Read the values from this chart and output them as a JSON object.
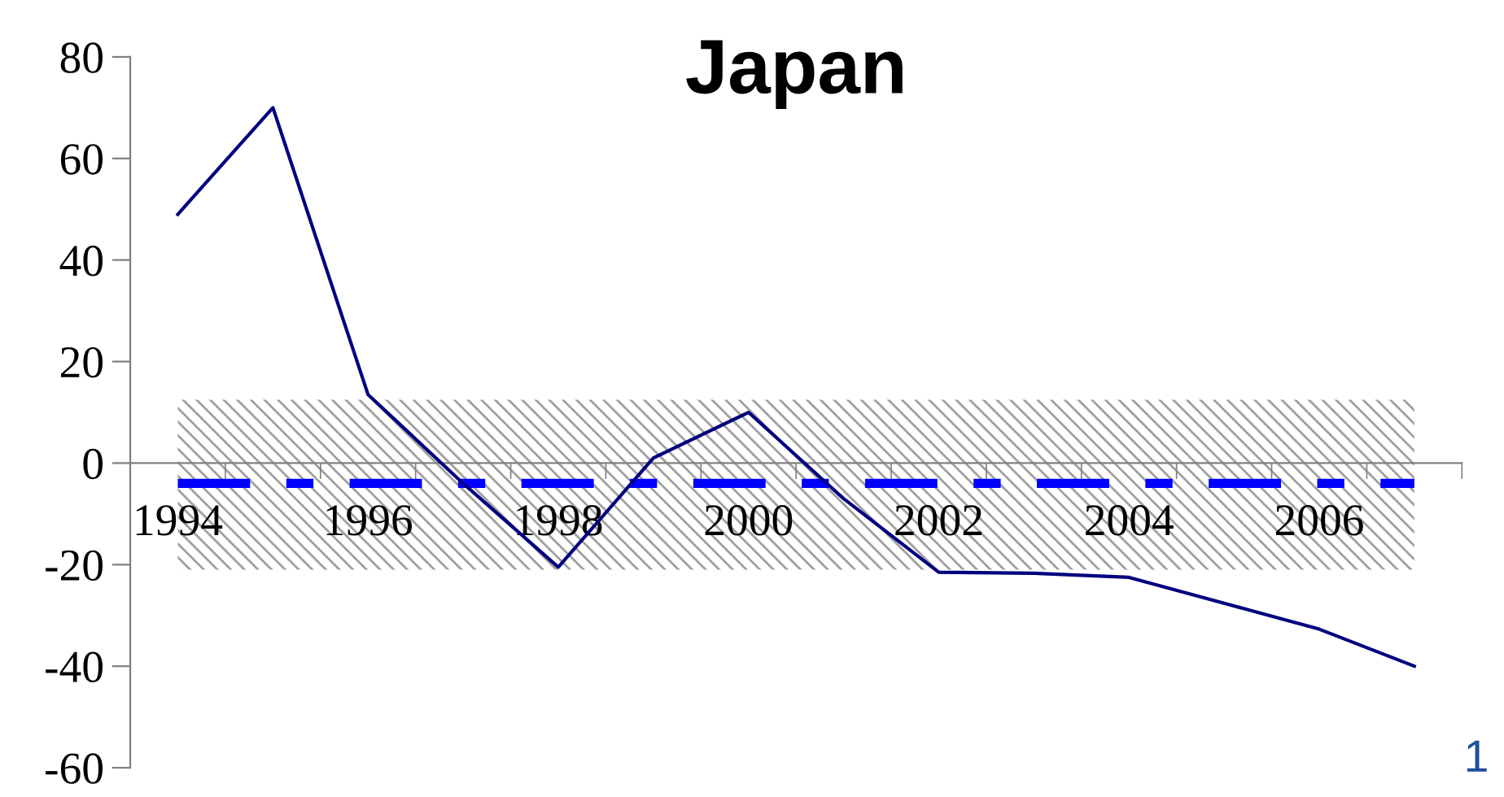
{
  "chart_data": {
    "type": "line",
    "title": "Japan",
    "categories": [
      "1994",
      null,
      "1996",
      null,
      "1998",
      null,
      "2000",
      null,
      "2002",
      null,
      "2004",
      null,
      "2006",
      null
    ],
    "series": [
      {
        "color": "#000080",
        "values": [
          49,
          70,
          13.5,
          -4,
          -20.5,
          1,
          10,
          -7,
          -21.5,
          -21.7,
          -22.5,
          -27.6,
          -32.7,
          -40
        ]
      }
    ],
    "ylim": [
      -60,
      80
    ],
    "yticks": [
      -60,
      -40,
      -20,
      0,
      20,
      40,
      60,
      80
    ],
    "ref_lines": [
      {
        "axis": "y",
        "value": -4,
        "color": "#0000ff",
        "line_style": "dashed"
      }
    ],
    "bands": [
      {
        "axis": "y",
        "from": -21,
        "to": 12.5,
        "color": "#a0a0a0"
      }
    ],
    "annotations": [
      "1"
    ],
    "grid": false,
    "legend": false,
    "marker": "none",
    "line_style": "solid"
  }
}
